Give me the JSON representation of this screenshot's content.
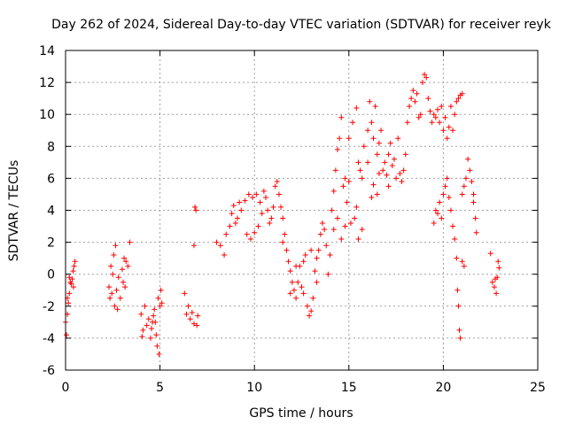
{
  "chart_data": {
    "type": "scatter",
    "title": "Day 262 of 2024, Sidereal Day-to-day VTEC variation (SDTVAR) for receiver reyk",
    "xlabel": "GPS time / hours",
    "ylabel": "SDTVAR / TECUs",
    "xlim": [
      0,
      25
    ],
    "ylim": [
      -6,
      14
    ],
    "xticks": [
      0,
      5,
      10,
      15,
      20,
      25
    ],
    "yticks": [
      -6,
      -4,
      -2,
      0,
      2,
      4,
      6,
      8,
      10,
      12,
      14
    ],
    "grid": true,
    "marker": "+",
    "color": "#ff0000",
    "series": [
      {
        "name": "SDTVAR",
        "points": [
          [
            0.0,
            -3.0
          ],
          [
            0.05,
            -3.8
          ],
          [
            0.1,
            -2.5
          ],
          [
            0.15,
            -1.8
          ],
          [
            0.2,
            -1.2
          ],
          [
            0.25,
            -0.5
          ],
          [
            0.3,
            -0.6
          ],
          [
            0.35,
            -0.3
          ],
          [
            0.4,
            0.2
          ],
          [
            0.45,
            0.5
          ],
          [
            0.5,
            0.8
          ],
          [
            0.42,
            -0.8
          ],
          [
            0.2,
            -0.2
          ],
          [
            0.1,
            -1.5
          ],
          [
            2.3,
            -0.8
          ],
          [
            2.4,
            0.5
          ],
          [
            2.45,
            -1.2
          ],
          [
            2.5,
            0.0
          ],
          [
            2.55,
            1.2
          ],
          [
            2.6,
            -2.0
          ],
          [
            2.65,
            1.8
          ],
          [
            2.7,
            -1.0
          ],
          [
            2.8,
            -0.2
          ],
          [
            2.9,
            -1.5
          ],
          [
            3.0,
            0.3
          ],
          [
            3.05,
            -0.5
          ],
          [
            3.1,
            1.0
          ],
          [
            3.2,
            0.8
          ],
          [
            3.3,
            0.5
          ],
          [
            3.4,
            2.0
          ],
          [
            2.35,
            -1.5
          ],
          [
            2.75,
            -2.2
          ],
          [
            3.15,
            -0.8
          ],
          [
            4.0,
            -2.5
          ],
          [
            4.1,
            -3.5
          ],
          [
            4.2,
            -2.0
          ],
          [
            4.3,
            -3.2
          ],
          [
            4.4,
            -2.8
          ],
          [
            4.5,
            -4.0
          ],
          [
            4.6,
            -3.0
          ],
          [
            4.7,
            -2.2
          ],
          [
            4.8,
            -3.8
          ],
          [
            4.85,
            -4.5
          ],
          [
            4.9,
            -1.5
          ],
          [
            5.0,
            -2.0
          ],
          [
            5.05,
            -1.0
          ],
          [
            5.1,
            -1.8
          ],
          [
            4.95,
            -5.0
          ],
          [
            4.05,
            -3.9
          ],
          [
            4.55,
            -3.4
          ],
          [
            4.65,
            -2.6
          ],
          [
            4.75,
            -3.0
          ],
          [
            6.3,
            -1.2
          ],
          [
            6.4,
            -2.5
          ],
          [
            6.5,
            -2.0
          ],
          [
            6.6,
            -2.8
          ],
          [
            6.7,
            -2.4
          ],
          [
            6.8,
            -3.1
          ],
          [
            6.85,
            4.2
          ],
          [
            6.9,
            4.0
          ],
          [
            6.8,
            1.8
          ],
          [
            7.0,
            -2.6
          ],
          [
            6.95,
            -3.2
          ],
          [
            8.0,
            2.0
          ],
          [
            8.2,
            1.8
          ],
          [
            8.4,
            1.2
          ],
          [
            8.5,
            2.5
          ],
          [
            8.7,
            3.0
          ],
          [
            8.9,
            4.3
          ],
          [
            9.1,
            3.5
          ],
          [
            9.3,
            4.0
          ],
          [
            9.5,
            4.6
          ],
          [
            9.7,
            5.0
          ],
          [
            9.9,
            4.8
          ],
          [
            10.1,
            5.0
          ],
          [
            10.3,
            4.5
          ],
          [
            10.5,
            5.2
          ],
          [
            10.7,
            4.0
          ],
          [
            10.9,
            3.5
          ],
          [
            11.0,
            4.2
          ],
          [
            9.6,
            2.5
          ],
          [
            9.8,
            2.2
          ],
          [
            10.0,
            2.6
          ],
          [
            10.2,
            3.0
          ],
          [
            10.4,
            3.8
          ],
          [
            8.8,
            3.8
          ],
          [
            9.0,
            3.2
          ],
          [
            9.2,
            4.5
          ],
          [
            10.6,
            4.8
          ],
          [
            10.8,
            3.2
          ],
          [
            11.1,
            5.5
          ],
          [
            11.2,
            5.8
          ],
          [
            11.3,
            5.0
          ],
          [
            11.4,
            4.2
          ],
          [
            11.5,
            3.5
          ],
          [
            11.6,
            2.5
          ],
          [
            11.7,
            1.5
          ],
          [
            11.8,
            0.8
          ],
          [
            11.9,
            0.2
          ],
          [
            12.0,
            -0.5
          ],
          [
            12.1,
            -1.0
          ],
          [
            12.2,
            -1.5
          ],
          [
            12.3,
            -0.5
          ],
          [
            12.4,
            0.5
          ],
          [
            12.5,
            -0.8
          ],
          [
            12.6,
            0.8
          ],
          [
            12.7,
            1.2
          ],
          [
            12.8,
            -2.0
          ],
          [
            12.9,
            -2.6
          ],
          [
            13.0,
            -2.3
          ],
          [
            13.1,
            -1.5
          ],
          [
            13.2,
            0.2
          ],
          [
            13.3,
            1.0
          ],
          [
            13.4,
            1.5
          ],
          [
            13.5,
            2.5
          ],
          [
            13.6,
            3.2
          ],
          [
            13.7,
            2.8
          ],
          [
            13.8,
            1.8
          ],
          [
            13.9,
            0.0
          ],
          [
            14.0,
            1.2
          ],
          [
            11.5,
            2.0
          ],
          [
            11.9,
            -1.2
          ],
          [
            12.2,
            0.5
          ],
          [
            12.6,
            -1.2
          ],
          [
            13.0,
            1.5
          ],
          [
            13.3,
            -0.5
          ],
          [
            14.1,
            4.0
          ],
          [
            14.2,
            5.2
          ],
          [
            14.3,
            6.5
          ],
          [
            14.4,
            7.8
          ],
          [
            14.5,
            8.5
          ],
          [
            14.6,
            9.8
          ],
          [
            14.7,
            5.5
          ],
          [
            14.8,
            6.0
          ],
          [
            14.9,
            4.5
          ],
          [
            15.0,
            5.8
          ],
          [
            14.2,
            2.8
          ],
          [
            14.6,
            2.2
          ],
          [
            15.1,
            3.2
          ],
          [
            14.4,
            3.5
          ],
          [
            14.8,
            3.0
          ],
          [
            15.3,
            3.5
          ],
          [
            15.5,
            2.2
          ],
          [
            15.7,
            2.8
          ],
          [
            15.4,
            4.2
          ],
          [
            15.0,
            8.5
          ],
          [
            15.2,
            9.5
          ],
          [
            15.4,
            10.4
          ],
          [
            15.5,
            7.0
          ],
          [
            15.6,
            6.5
          ],
          [
            15.8,
            8.0
          ],
          [
            16.0,
            9.0
          ],
          [
            16.1,
            10.8
          ],
          [
            16.2,
            9.5
          ],
          [
            16.3,
            8.5
          ],
          [
            16.4,
            10.5
          ],
          [
            16.5,
            7.5
          ],
          [
            16.6,
            8.2
          ],
          [
            16.7,
            9.0
          ],
          [
            16.8,
            6.5
          ],
          [
            16.9,
            7.0
          ],
          [
            17.0,
            6.2
          ],
          [
            17.1,
            7.5
          ],
          [
            17.2,
            8.2
          ],
          [
            17.3,
            6.8
          ],
          [
            17.4,
            7.2
          ],
          [
            17.5,
            6.0
          ],
          [
            17.6,
            8.5
          ],
          [
            17.7,
            6.3
          ],
          [
            17.8,
            5.8
          ],
          [
            17.9,
            6.5
          ],
          [
            16.0,
            7.0
          ],
          [
            16.5,
            5.0
          ],
          [
            15.7,
            6.0
          ],
          [
            16.3,
            5.6
          ],
          [
            16.2,
            4.8
          ],
          [
            16.6,
            6.3
          ],
          [
            17.1,
            5.5
          ],
          [
            18.0,
            7.5
          ],
          [
            18.1,
            9.5
          ],
          [
            18.2,
            10.5
          ],
          [
            18.3,
            11.0
          ],
          [
            18.4,
            11.5
          ],
          [
            18.5,
            10.8
          ],
          [
            18.6,
            11.3
          ],
          [
            18.7,
            9.8
          ],
          [
            18.8,
            10.0
          ],
          [
            18.9,
            12.0
          ],
          [
            19.0,
            12.5
          ],
          [
            19.1,
            12.3
          ],
          [
            19.2,
            11.0
          ],
          [
            19.3,
            10.2
          ],
          [
            19.4,
            9.5
          ],
          [
            19.5,
            10.0
          ],
          [
            19.6,
            9.8
          ],
          [
            19.7,
            10.3
          ],
          [
            19.8,
            9.5
          ],
          [
            19.9,
            10.5
          ],
          [
            20.0,
            9.0
          ],
          [
            20.1,
            9.8
          ],
          [
            20.2,
            8.5
          ],
          [
            20.3,
            9.2
          ],
          [
            20.4,
            10.5
          ],
          [
            20.5,
            9.0
          ],
          [
            20.6,
            10.0
          ],
          [
            20.7,
            10.8
          ],
          [
            20.8,
            11.0
          ],
          [
            20.9,
            11.2
          ],
          [
            21.0,
            11.3
          ],
          [
            19.5,
            3.2
          ],
          [
            19.6,
            4.0
          ],
          [
            19.7,
            3.8
          ],
          [
            19.8,
            4.5
          ],
          [
            19.9,
            3.5
          ],
          [
            20.1,
            5.5
          ],
          [
            20.2,
            6.0
          ],
          [
            20.3,
            4.8
          ],
          [
            20.4,
            4.0
          ],
          [
            20.5,
            3.0
          ],
          [
            20.6,
            2.2
          ],
          [
            20.7,
            1.0
          ],
          [
            20.75,
            -1.0
          ],
          [
            20.8,
            -2.0
          ],
          [
            20.85,
            -3.5
          ],
          [
            20.9,
            -4.0
          ],
          [
            21.0,
            5.0
          ],
          [
            21.1,
            5.5
          ],
          [
            21.2,
            6.0
          ],
          [
            21.3,
            7.2
          ],
          [
            21.4,
            6.5
          ],
          [
            21.5,
            5.8
          ],
          [
            21.6,
            4.5
          ],
          [
            21.7,
            3.5
          ],
          [
            21.75,
            2.6
          ],
          [
            21.6,
            5.0
          ],
          [
            21.0,
            0.8
          ],
          [
            21.1,
            0.5
          ],
          [
            20.0,
            5.0
          ],
          [
            22.6,
            -0.5
          ],
          [
            22.7,
            -0.8
          ],
          [
            22.8,
            -1.2
          ],
          [
            22.85,
            -0.2
          ],
          [
            22.9,
            0.8
          ],
          [
            22.95,
            0.4
          ],
          [
            22.5,
            1.3
          ],
          [
            22.75,
            -0.3
          ]
        ]
      }
    ]
  }
}
